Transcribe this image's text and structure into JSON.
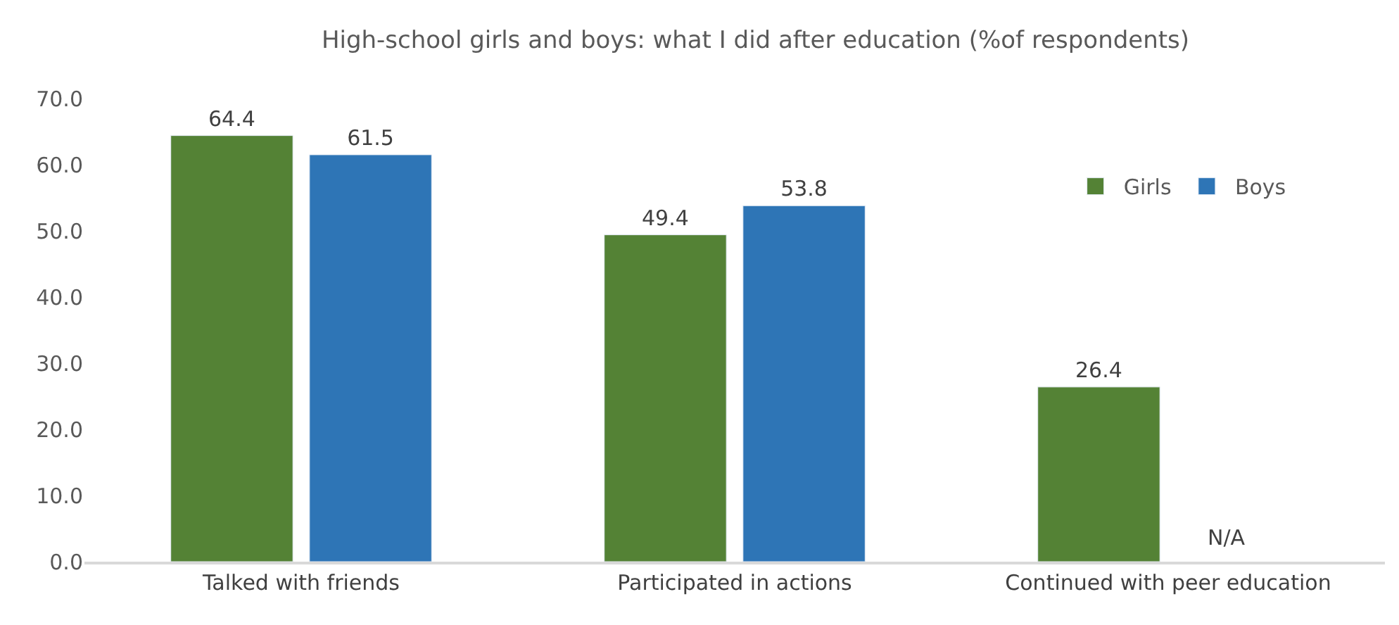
{
  "chart_data": {
    "type": "bar",
    "title": "High-school girls and boys: what I did after education (%of respondents)",
    "categories": [
      "Talked with friends",
      "Participated in actions",
      "Continued with peer education"
    ],
    "series": [
      {
        "name": "Girls",
        "color": "#548235",
        "values": [
          64.4,
          49.4,
          26.4
        ],
        "value_labels": [
          "64.4",
          "49.4",
          "26.4"
        ]
      },
      {
        "name": "Boys",
        "color": "#2e75b6",
        "values": [
          61.5,
          53.8,
          null
        ],
        "value_labels": [
          "61.5",
          "53.8",
          "N/A"
        ]
      }
    ],
    "ylim": [
      0,
      70
    ],
    "yticks": [
      {
        "value": 0,
        "label": "0.0"
      },
      {
        "value": 10,
        "label": "10.0"
      },
      {
        "value": 20,
        "label": "20.0"
      },
      {
        "value": 30,
        "label": "30.0"
      },
      {
        "value": 40,
        "label": "40.0"
      },
      {
        "value": 50,
        "label": "50.0"
      },
      {
        "value": 60,
        "label": "60.0"
      },
      {
        "value": 70,
        "label": "70.0"
      }
    ],
    "legend": "top right"
  }
}
